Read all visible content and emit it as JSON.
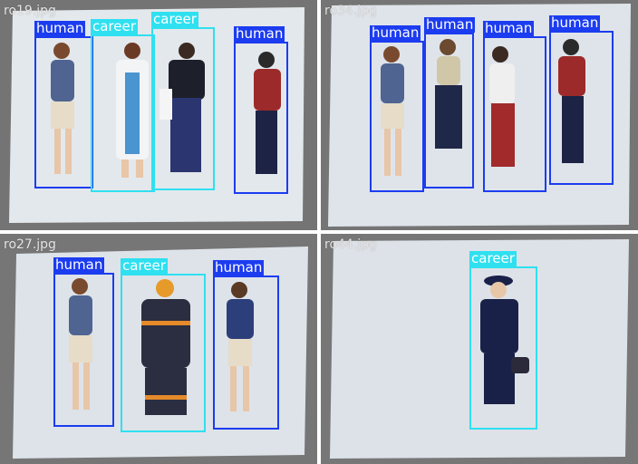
{
  "labels": {
    "human": "human",
    "career": "career"
  },
  "colors": {
    "human": "#1c3cf0",
    "career": "#2fe0f0",
    "panel_bg": "#7a7a7a",
    "paper": "#e6ebef"
  },
  "panels": [
    {
      "filename": "ro19.jpg"
    },
    {
      "filename": "ro34.jpg"
    },
    {
      "filename": "ro27.jpg"
    },
    {
      "filename": "ro44.jpg"
    }
  ]
}
